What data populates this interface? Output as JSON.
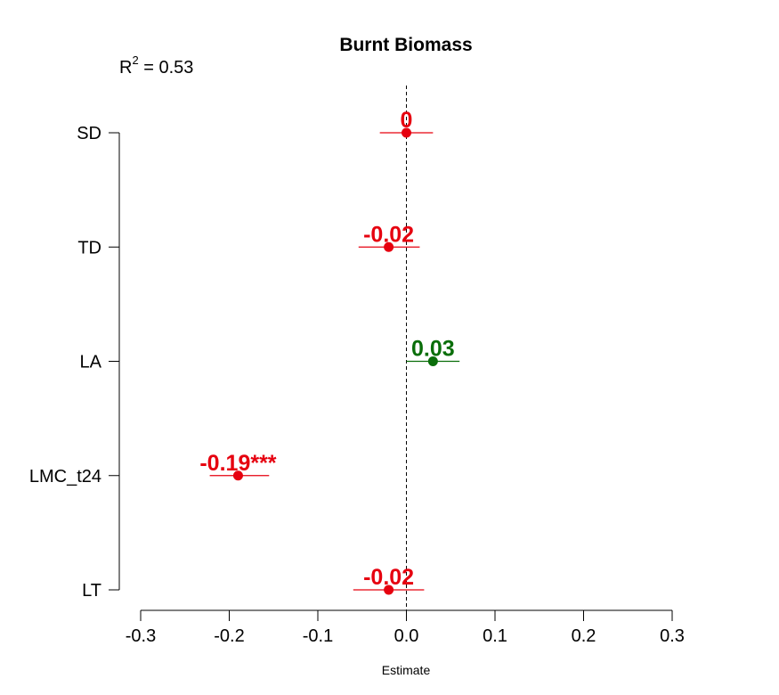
{
  "chart_data": {
    "type": "scatter",
    "title": "Burnt Biomass",
    "annotation": {
      "r2_prefix": "R",
      "r2_exp": "2",
      "r2_value": " = 0.53"
    },
    "xlabel": "Estimate",
    "ylabel": "",
    "xlim": [
      -0.3,
      0.3
    ],
    "xticks": [
      -0.3,
      -0.2,
      -0.1,
      0.0,
      0.1,
      0.2,
      0.3
    ],
    "xtick_labels": [
      "-0.3",
      "-0.2",
      "-0.1",
      "0.0",
      "0.1",
      "0.2",
      "0.3"
    ],
    "reference_line": 0,
    "grid": false,
    "legend": "none",
    "colors": {
      "negative": "#e6000f",
      "positive": "#0a6e0a"
    },
    "points": [
      {
        "category": "SD",
        "estimate": 0.0,
        "ci": [
          -0.03,
          0.03
        ],
        "label": "0",
        "sign": "negative"
      },
      {
        "category": "TD",
        "estimate": -0.02,
        "ci": [
          -0.054,
          0.015
        ],
        "label": "-0.02",
        "sign": "negative"
      },
      {
        "category": "LA",
        "estimate": 0.03,
        "ci": [
          0.0,
          0.06
        ],
        "label": "0.03",
        "sign": "positive"
      },
      {
        "category": "LMC_t24",
        "estimate": -0.19,
        "ci": [
          -0.222,
          -0.155
        ],
        "label": "-0.19***",
        "sign": "negative"
      },
      {
        "category": "LT",
        "estimate": -0.02,
        "ci": [
          -0.06,
          0.02
        ],
        "label": "-0.02",
        "sign": "negative"
      }
    ]
  }
}
